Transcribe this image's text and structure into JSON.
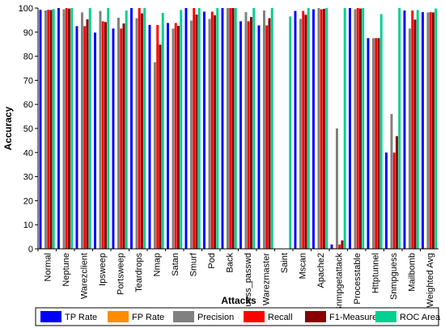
{
  "chart_data": {
    "type": "bar",
    "title": "",
    "xlabel": "Attacks",
    "ylabel": "Accuracy",
    "ylim": [
      0,
      100
    ],
    "yticks": [
      0,
      10,
      20,
      30,
      40,
      50,
      60,
      70,
      80,
      90,
      100
    ],
    "grid": false,
    "legend_position": "bottom",
    "categories": [
      "Normal",
      "Neptune",
      "Warezclient",
      "Ipsweep",
      "Portsweep",
      "Teardrops",
      "Nmap",
      "Satan",
      "Smurf",
      "Pod",
      "Back",
      "Guess_passwd",
      "Warezmaster",
      "Saint",
      "Mscan",
      "Apache2",
      "Snmpgetattack",
      "Processtable",
      "Httptunnel",
      "Snmpguess",
      "Mailbomb",
      "Weighted Avg"
    ],
    "series": [
      {
        "name": "TP Rate",
        "color": "#0000ff",
        "values": [
          99.3,
          100,
          92.5,
          89.8,
          91.5,
          100,
          93,
          93.8,
          100,
          98.5,
          100,
          94.5,
          92.8,
          0,
          98.8,
          99.5,
          1.8,
          100,
          87.5,
          40,
          99,
          98.3
        ]
      },
      {
        "name": "FP Rate",
        "color": "#ff8c00",
        "values": [
          0.3,
          0.1,
          0.2,
          0.1,
          0.1,
          0.1,
          0.2,
          0.3,
          0.1,
          0.1,
          0.1,
          0.2,
          0.2,
          0,
          0.3,
          0.2,
          0.3,
          0.1,
          0.2,
          0.3,
          0.2,
          0.4
        ]
      },
      {
        "name": "Precision",
        "color": "#808080",
        "values": [
          99,
          99.5,
          98.2,
          98.8,
          96,
          95.8,
          77.5,
          91.5,
          94.8,
          95.5,
          100,
          98.3,
          99,
          0,
          95.5,
          100,
          50,
          99.5,
          87.5,
          56,
          91.5,
          98.2
        ]
      },
      {
        "name": "Recall",
        "color": "#ff0000",
        "values": [
          99.3,
          100,
          92.5,
          94.5,
          91.5,
          100,
          93,
          93.8,
          100,
          98.5,
          100,
          94.5,
          92.8,
          0,
          98.8,
          99.5,
          1.8,
          100,
          87.5,
          40,
          99,
          98.3
        ]
      },
      {
        "name": "F1-Measure",
        "color": "#8b0000",
        "values": [
          99.2,
          99.8,
          95.3,
          94.2,
          93.6,
          97.8,
          84.8,
          92.6,
          97.3,
          97,
          100,
          96.3,
          95.8,
          0,
          97.2,
          99.7,
          3.5,
          99.8,
          87.5,
          46.8,
          95.2,
          98.2
        ]
      },
      {
        "name": "ROC Area",
        "color": "#00d090",
        "values": [
          99.6,
          100,
          100,
          100,
          99,
          100,
          98,
          99.2,
          100,
          100,
          100,
          100,
          100,
          96.5,
          100,
          100,
          100,
          100,
          97.5,
          100,
          99.2,
          99.8
        ]
      }
    ]
  }
}
